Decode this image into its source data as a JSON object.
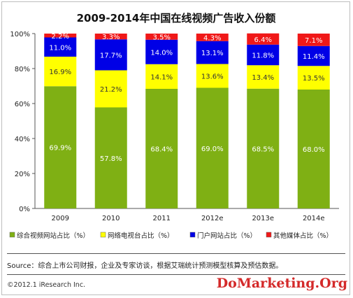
{
  "chart_data": {
    "type": "bar",
    "stacked": true,
    "title": "2009-2014年中国在线视频广告收入份额",
    "categories": [
      "2009",
      "2010",
      "2011",
      "2012e",
      "2013e",
      "2014e"
    ],
    "ylim": [
      0,
      100
    ],
    "yticks": [
      "0%",
      "20%",
      "40%",
      "60%",
      "80%",
      "100%"
    ],
    "grid": false,
    "legend_position": "bottom",
    "series": [
      {
        "name": "综合视频网站占比（%）",
        "color": "#7fb014",
        "label_color": "#ffffff",
        "labels": [
          "69.9%",
          "57.8%",
          "68.4%",
          "69.0%",
          "68.5%",
          "68.0%"
        ],
        "values": [
          69.9,
          57.8,
          68.4,
          69.0,
          68.5,
          68.0
        ]
      },
      {
        "name": "网络电视台占比（%）",
        "color": "#ffff00",
        "label_color": "#333333",
        "labels": [
          "16.9%",
          "21.2%",
          "14.1%",
          "13.6%",
          "13.4%",
          "13.5%"
        ],
        "values": [
          16.9,
          21.2,
          14.1,
          13.6,
          13.4,
          13.5
        ]
      },
      {
        "name": "门户网站占比（%）",
        "color": "#0000e6",
        "label_color": "#ffffff",
        "labels": [
          "11.0%",
          "17.7%",
          "14.0%",
          "13.1%",
          "11.8%",
          "11.4%"
        ],
        "values": [
          11.0,
          17.7,
          14.0,
          13.1,
          11.8,
          11.4
        ]
      },
      {
        "name": "其他媒体占比（%）",
        "color": "#f01818",
        "label_color": "#ffffff",
        "labels": [
          "2.2%",
          "3.3%",
          "3.5%",
          "4.3%",
          "6.4%",
          "7.1%"
        ],
        "values": [
          2.2,
          3.3,
          3.5,
          4.3,
          6.4,
          7.1
        ]
      }
    ]
  },
  "footer": {
    "source": "Source：综合上市公司财报，企业及专家访谈，根据艾瑞统计预测模型核算及预估数据。",
    "copyright": "©2012.1 iResearch Inc.",
    "watermark": "DoMarketing.Org"
  }
}
